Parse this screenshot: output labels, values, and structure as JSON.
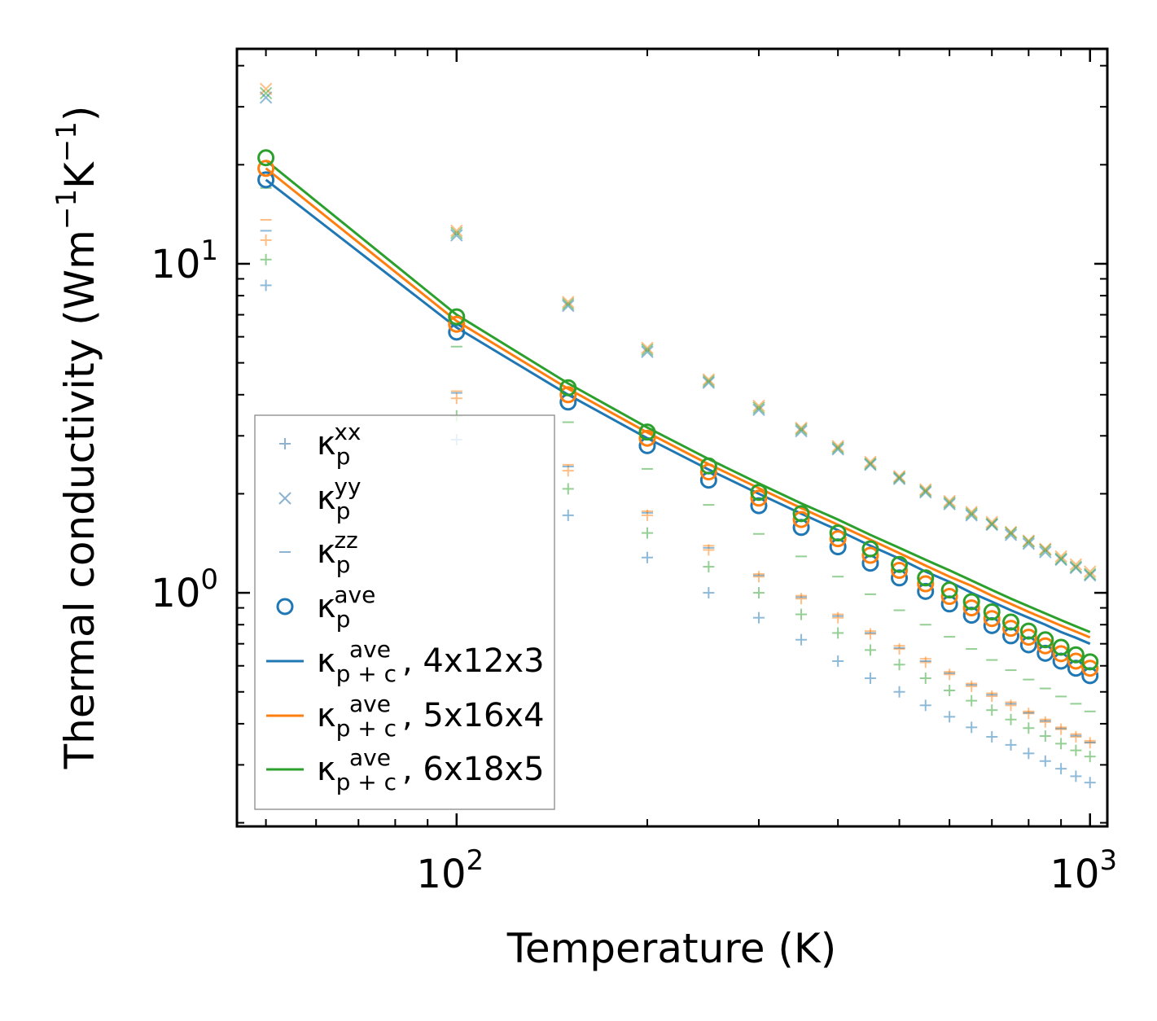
{
  "chart_data": {
    "type": "scatter",
    "xlabel": "Temperature (K)",
    "ylabel": "Thermal conductivity (Wm",
    "ylabel_sup1": "−1",
    "ylabel_mid": "K",
    "ylabel_sup2": "−1",
    "ylabel_end": ")",
    "xscale": "log",
    "yscale": "log",
    "xlim": [
      45,
      1065
    ],
    "ylim": [
      0.195,
      45
    ],
    "x_ticks": [
      {
        "value": 100,
        "base": "10",
        "exp": "2"
      },
      {
        "value": 1000,
        "base": "10",
        "exp": "3"
      }
    ],
    "y_ticks": [
      {
        "value": 1,
        "base": "10",
        "exp": "0"
      },
      {
        "value": 10,
        "base": "10",
        "exp": "1"
      }
    ],
    "colors": {
      "blue": "#1f77b4",
      "orange": "#ff7f0e",
      "green": "#2ca02c",
      "legend_marker": "#7aa6c9"
    },
    "x": [
      50,
      100,
      150,
      200,
      250,
      300,
      350,
      400,
      450,
      500,
      550,
      600,
      650,
      700,
      750,
      800,
      850,
      900,
      950,
      1000
    ],
    "series": [
      {
        "name": "kappa_p_xx",
        "kind": "plus",
        "group": "blue",
        "values": [
          8.6,
          2.92,
          1.72,
          1.28,
          1.0,
          0.84,
          0.72,
          0.62,
          0.55,
          0.5,
          0.455,
          0.42,
          0.39,
          0.365,
          0.345,
          0.325,
          0.308,
          0.292,
          0.277,
          0.265
        ]
      },
      {
        "name": "kappa_p_xx",
        "kind": "plus",
        "group": "orange",
        "values": [
          11.8,
          3.9,
          2.35,
          1.72,
          1.35,
          1.12,
          0.96,
          0.84,
          0.75,
          0.675,
          0.615,
          0.565,
          0.52,
          0.485,
          0.455,
          0.43,
          0.405,
          0.385,
          0.365,
          0.35
        ]
      },
      {
        "name": "kappa_p_xx",
        "kind": "plus",
        "group": "green",
        "values": [
          10.3,
          3.45,
          2.07,
          1.52,
          1.2,
          1.0,
          0.86,
          0.755,
          0.67,
          0.605,
          0.55,
          0.505,
          0.47,
          0.44,
          0.412,
          0.388,
          0.367,
          0.348,
          0.332,
          0.318
        ]
      },
      {
        "name": "kappa_p_yy",
        "kind": "x",
        "group": "blue",
        "values": [
          32,
          12.2,
          7.45,
          5.4,
          4.35,
          3.6,
          3.1,
          2.73,
          2.45,
          2.22,
          2.02,
          1.86,
          1.72,
          1.61,
          1.5,
          1.41,
          1.33,
          1.26,
          1.19,
          1.13
        ]
      },
      {
        "name": "kappa_p_yy",
        "kind": "x",
        "group": "orange",
        "values": [
          34,
          12.6,
          7.65,
          5.55,
          4.45,
          3.7,
          3.17,
          2.79,
          2.5,
          2.26,
          2.06,
          1.9,
          1.76,
          1.64,
          1.53,
          1.44,
          1.36,
          1.29,
          1.22,
          1.16
        ]
      },
      {
        "name": "kappa_p_yy",
        "kind": "x",
        "group": "green",
        "values": [
          33,
          12.4,
          7.55,
          5.48,
          4.4,
          3.65,
          3.14,
          2.76,
          2.47,
          2.24,
          2.04,
          1.88,
          1.74,
          1.62,
          1.52,
          1.43,
          1.35,
          1.27,
          1.2,
          1.14
        ]
      },
      {
        "name": "kappa_p_zz",
        "kind": "dash",
        "group": "blue",
        "values": [
          12.6,
          4.05,
          2.42,
          1.75,
          1.37,
          1.13,
          0.97,
          0.85,
          0.755,
          0.68,
          0.62,
          0.57,
          0.525,
          0.49,
          0.46,
          0.432,
          0.408,
          0.387,
          0.368,
          0.351
        ]
      },
      {
        "name": "kappa_p_zz",
        "kind": "dash",
        "group": "orange",
        "values": [
          13.6,
          4.1,
          2.45,
          1.77,
          1.39,
          1.14,
          0.98,
          0.86,
          0.765,
          0.69,
          0.63,
          0.575,
          0.53,
          0.495,
          0.465,
          0.436,
          0.412,
          0.39,
          0.372,
          0.355
        ]
      },
      {
        "name": "kappa_p_zz",
        "kind": "dash",
        "group": "green",
        "values": [
          17.0,
          5.6,
          3.3,
          2.38,
          1.85,
          1.51,
          1.29,
          1.12,
          0.99,
          0.885,
          0.8,
          0.735,
          0.675,
          0.625,
          0.582,
          0.545,
          0.512,
          0.484,
          0.46,
          0.436
        ]
      },
      {
        "name": "kappa_p_ave",
        "kind": "circle",
        "group": "blue",
        "values": [
          18.0,
          6.2,
          3.8,
          2.8,
          2.2,
          1.84,
          1.58,
          1.38,
          1.23,
          1.11,
          1.01,
          0.925,
          0.855,
          0.795,
          0.74,
          0.695,
          0.655,
          0.62,
          0.59,
          0.56
        ]
      },
      {
        "name": "kappa_p_ave",
        "kind": "circle",
        "group": "orange",
        "values": [
          19.5,
          6.55,
          4.0,
          2.95,
          2.33,
          1.94,
          1.67,
          1.46,
          1.3,
          1.17,
          1.065,
          0.975,
          0.9,
          0.835,
          0.78,
          0.733,
          0.69,
          0.653,
          0.62,
          0.59
        ]
      },
      {
        "name": "kappa_p_ave",
        "kind": "circle",
        "group": "green",
        "values": [
          21.0,
          6.9,
          4.2,
          3.08,
          2.43,
          2.02,
          1.74,
          1.52,
          1.36,
          1.22,
          1.11,
          1.02,
          0.94,
          0.875,
          0.815,
          0.765,
          0.72,
          0.683,
          0.648,
          0.617
        ]
      },
      {
        "name": "kappa_pc_ave_4x12x3",
        "kind": "line",
        "group": "blue",
        "values": [
          18.0,
          6.4,
          4.0,
          2.95,
          2.37,
          2.0,
          1.74,
          1.55,
          1.39,
          1.27,
          1.16,
          1.08,
          1.0,
          0.94,
          0.885,
          0.84,
          0.8,
          0.76,
          0.73,
          0.7
        ]
      },
      {
        "name": "kappa_pc_ave_5x16x4",
        "kind": "line",
        "group": "orange",
        "values": [
          19.5,
          6.7,
          4.17,
          3.07,
          2.46,
          2.08,
          1.81,
          1.61,
          1.45,
          1.32,
          1.21,
          1.12,
          1.05,
          0.98,
          0.925,
          0.875,
          0.833,
          0.795,
          0.762,
          0.732
        ]
      },
      {
        "name": "kappa_pc_ave_6x18x5",
        "kind": "line",
        "group": "green",
        "values": [
          20.6,
          7.0,
          4.33,
          3.18,
          2.55,
          2.15,
          1.87,
          1.67,
          1.5,
          1.37,
          1.26,
          1.17,
          1.09,
          1.02,
          0.96,
          0.91,
          0.866,
          0.826,
          0.791,
          0.76
        ]
      }
    ],
    "legend": {
      "placement": "lower-left",
      "entries": [
        {
          "kind": "plus",
          "color": "legend_marker",
          "sym": "κ",
          "sub": "p",
          "sup": "xx",
          "suffix": ""
        },
        {
          "kind": "x",
          "color": "legend_marker",
          "sym": "κ",
          "sub": "p",
          "sup": "yy",
          "suffix": ""
        },
        {
          "kind": "dash",
          "color": "legend_marker",
          "sym": "κ",
          "sub": "p",
          "sup": "zz",
          "suffix": ""
        },
        {
          "kind": "circle",
          "color": "blue",
          "sym": "κ",
          "sub": "p",
          "sup": "ave",
          "suffix": ""
        },
        {
          "kind": "line",
          "color": "blue",
          "sym": "κ",
          "sub": "p + c",
          "sup": "ave",
          "suffix": ", 4x12x3"
        },
        {
          "kind": "line",
          "color": "orange",
          "sym": "κ",
          "sub": "p + c",
          "sup": "ave",
          "suffix": ", 5x16x4"
        },
        {
          "kind": "line",
          "color": "green",
          "sym": "κ",
          "sub": "p + c",
          "sup": "ave",
          "suffix": ", 6x18x5"
        }
      ]
    }
  }
}
